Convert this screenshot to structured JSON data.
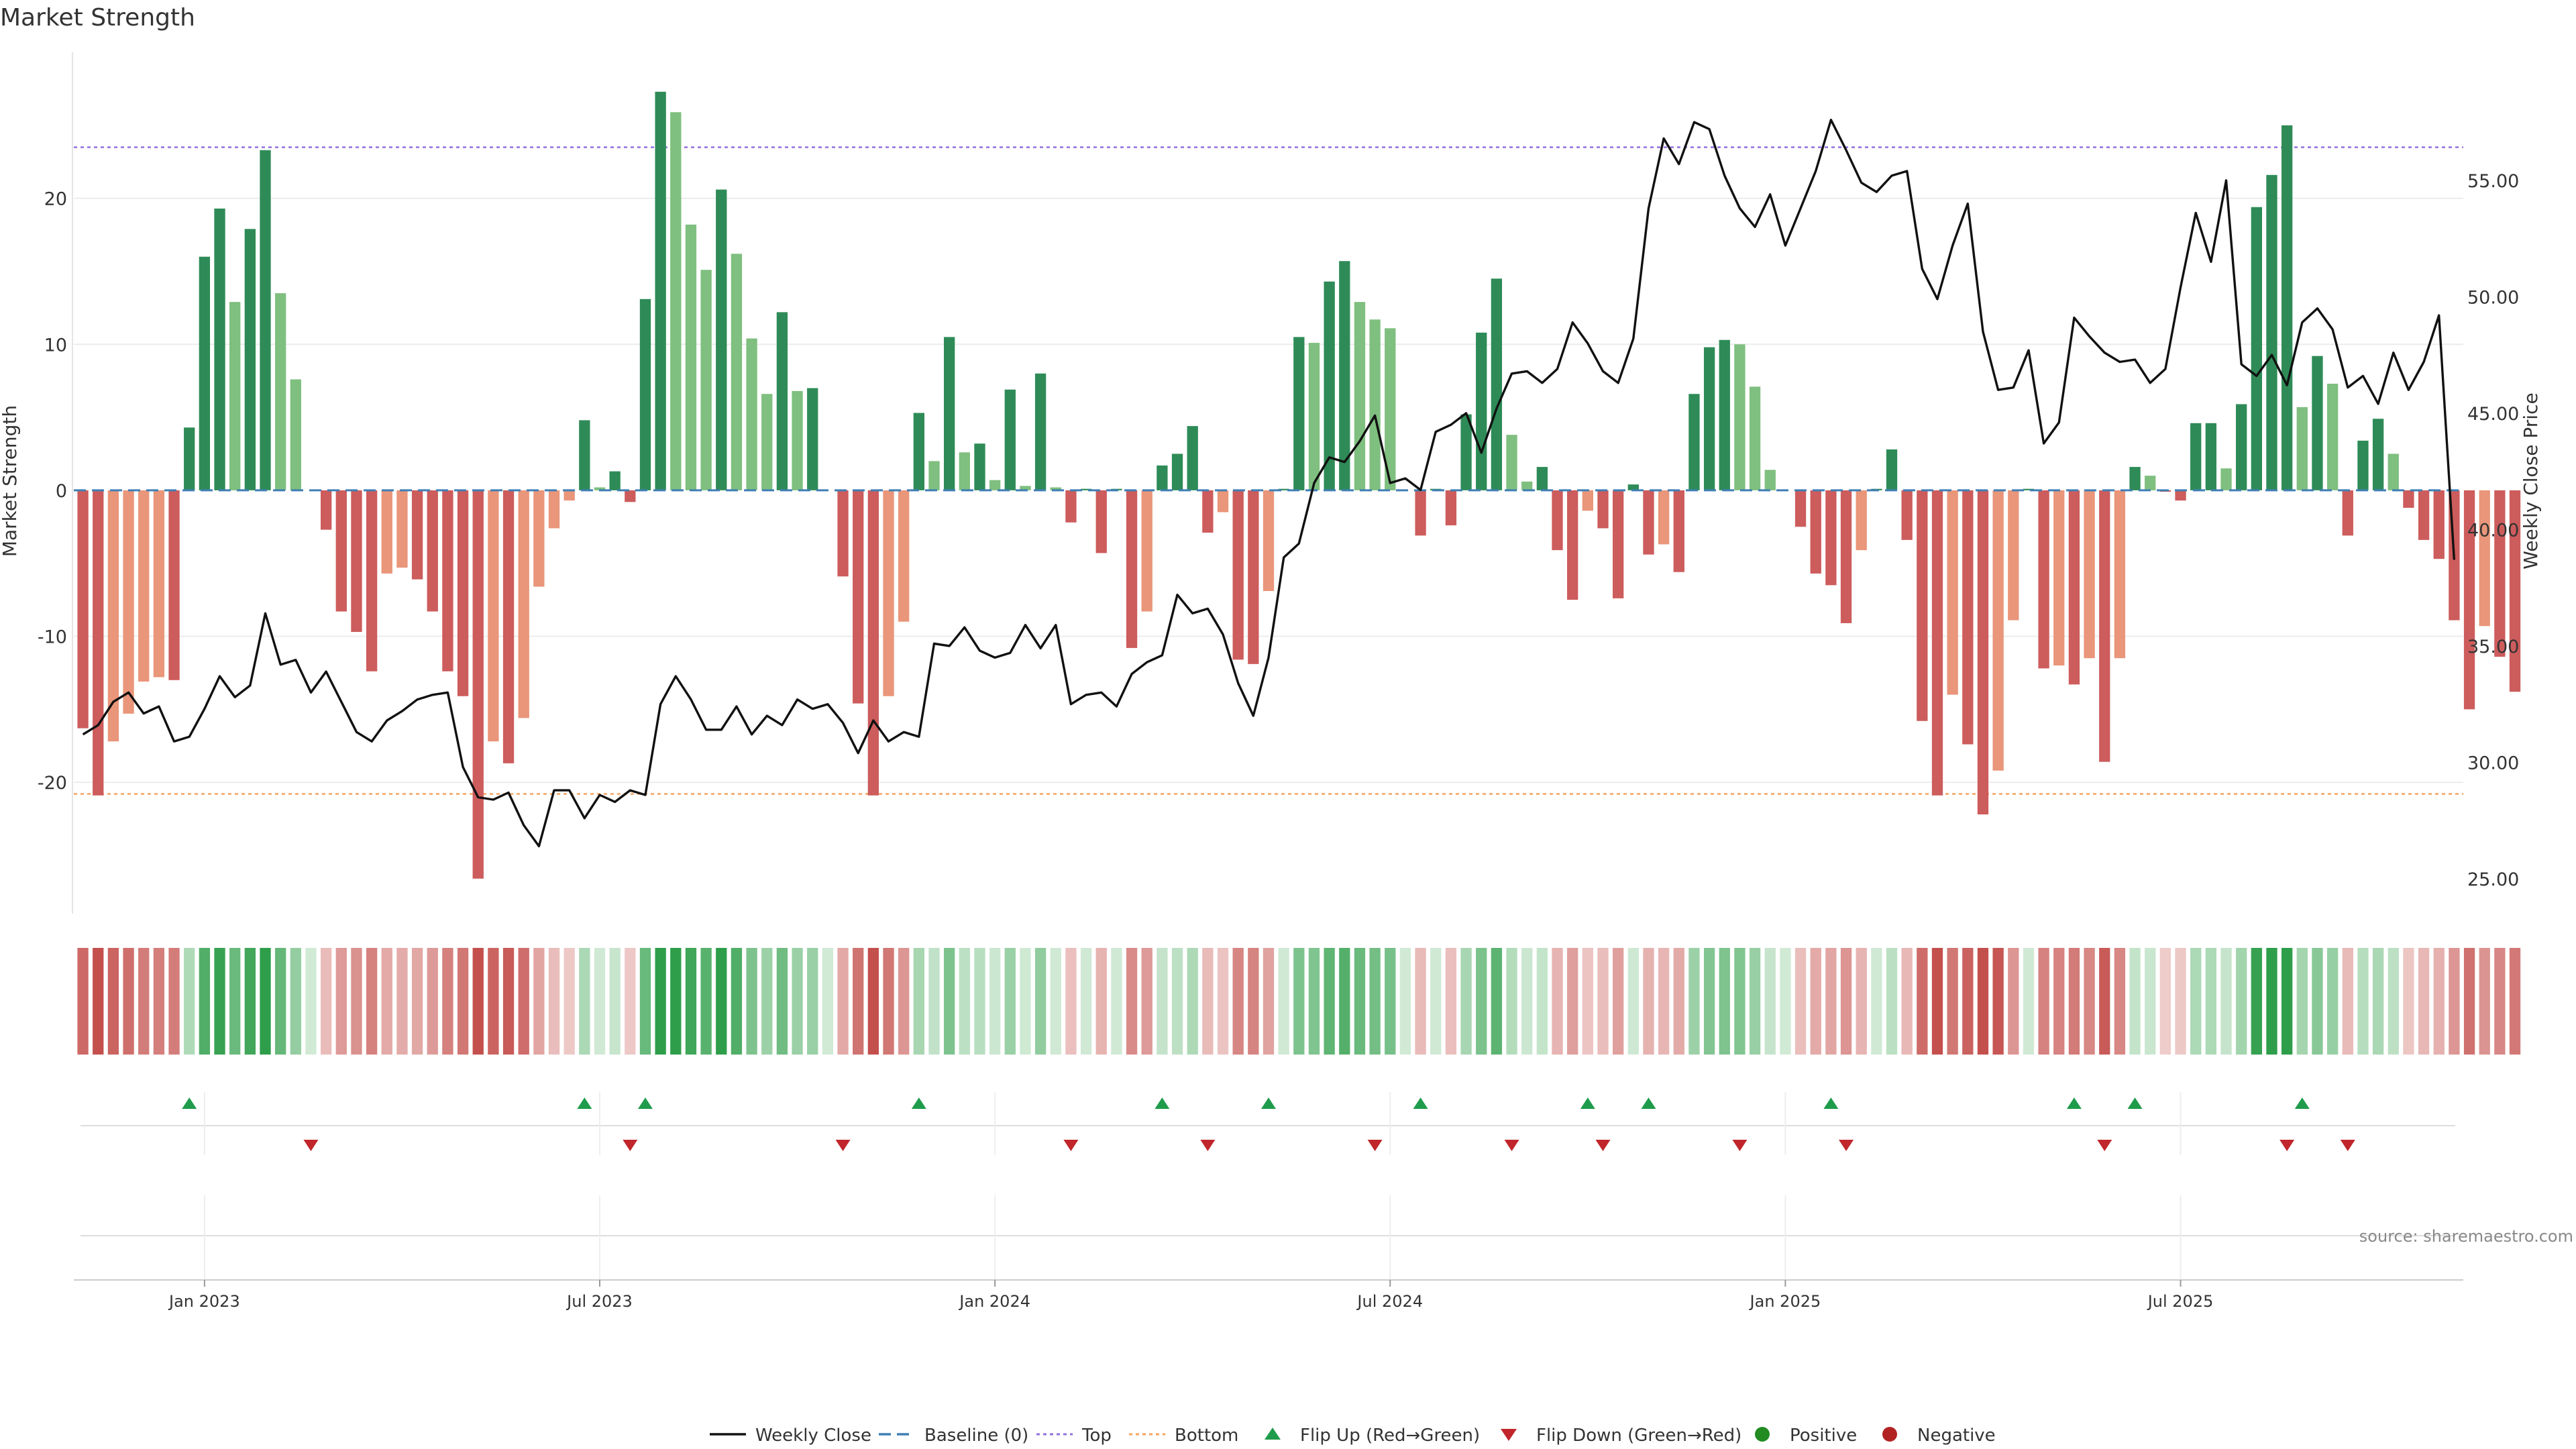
{
  "chart_data": {
    "type": "bar+line",
    "title": "Market Strength",
    "ylabel_left": "Market Strength",
    "ylabel_right": "Weekly Close Price",
    "source": "source: sharemaestro.com",
    "ylim_left": [
      -29,
      30
    ],
    "ylim_right": [
      23.5,
      60.5
    ],
    "yticks_left": [
      "20",
      "10",
      "0",
      "-10",
      "-20"
    ],
    "yticks_left_values": [
      20,
      10,
      0,
      -10,
      -20
    ],
    "yticks_right": [
      "55.00",
      "50.00",
      "45.00",
      "40.00",
      "35.00",
      "30.00",
      "25.00"
    ],
    "yticks_right_values": [
      55,
      50,
      45,
      40,
      35,
      30,
      25
    ],
    "top_line": 23.5,
    "bottom_line": -20.8,
    "x_ticks": [
      "Jan 2023",
      "Jul 2023",
      "Jan 2024",
      "Jul 2024",
      "Jan 2025",
      "Jul 2025"
    ],
    "x_tick_weeks": [
      8,
      34,
      60,
      86,
      112,
      138
    ],
    "x_domain_weeks": [
      -0.6,
      156.6
    ],
    "strength": [
      -16.3,
      -20.9,
      -17.2,
      -15.3,
      -13.1,
      -12.8,
      -13.0,
      4.3,
      16.0,
      19.3,
      12.9,
      17.9,
      23.3,
      13.5,
      7.6,
      0,
      -2.7,
      -8.3,
      -9.7,
      -12.4,
      -5.7,
      -5.3,
      -6.1,
      -8.3,
      -12.4,
      -14.1,
      -26.6,
      -17.2,
      -18.7,
      -15.6,
      -6.6,
      -2.6,
      -0.7,
      4.8,
      0.2,
      1.3,
      -0.8,
      13.1,
      27.3,
      25.9,
      18.2,
      15.1,
      20.6,
      16.2,
      10.4,
      6.6,
      12.2,
      6.8,
      7.0,
      0,
      -5.9,
      -14.6,
      -20.9,
      -14.1,
      -9.0,
      5.3,
      2.0,
      10.5,
      2.6,
      3.2,
      0.7,
      6.9,
      0.3,
      8.0,
      0.2,
      -2.2,
      0.1,
      -4.3,
      0.1,
      -10.8,
      -8.3,
      1.7,
      2.5,
      4.4,
      -2.9,
      -1.5,
      -11.6,
      -11.9,
      -6.9,
      0.1,
      10.5,
      10.1,
      14.3,
      15.7,
      12.9,
      11.7,
      11.1,
      0,
      -3.1,
      0.1,
      -2.4,
      5.2,
      10.8,
      14.5,
      3.8,
      0.6,
      1.6,
      -4.1,
      -7.5,
      -1.4,
      -2.6,
      -7.4,
      0.4,
      -4.4,
      -3.7,
      -5.6,
      6.6,
      9.8,
      10.3,
      10.0,
      7.1,
      1.4,
      0,
      -2.5,
      -5.7,
      -6.5,
      -9.1,
      -4.1,
      0.1,
      2.8,
      -3.4,
      -15.8,
      -20.9,
      -14.0,
      -17.4,
      -22.2,
      -19.2,
      -8.9,
      0.1,
      -12.2,
      -12.0,
      -13.3,
      -11.5,
      -18.6,
      -11.5,
      1.6,
      1.0,
      -0.1,
      -0.7,
      4.6,
      4.6,
      1.5,
      5.9,
      19.4,
      21.6,
      25.0,
      5.7,
      9.2,
      7.3,
      -3.1,
      3.4,
      4.9,
      2.5,
      -1.2,
      -3.4,
      -4.7,
      -8.9,
      -15.0,
      -9.3,
      -11.4,
      -13.8
    ],
    "close": [
      31.2,
      31.6,
      32.6,
      33.0,
      32.1,
      32.4,
      30.9,
      31.1,
      32.3,
      33.7,
      32.8,
      33.3,
      36.4,
      34.2,
      34.4,
      33.0,
      33.9,
      32.6,
      31.3,
      30.9,
      31.8,
      32.2,
      32.7,
      32.9,
      33.0,
      29.8,
      28.5,
      28.4,
      28.7,
      27.3,
      26.4,
      28.8,
      28.8,
      27.6,
      28.6,
      28.3,
      28.8,
      28.6,
      32.5,
      33.7,
      32.7,
      31.4,
      31.4,
      32.4,
      31.2,
      32.0,
      31.6,
      32.7,
      32.3,
      32.5,
      31.7,
      30.4,
      31.8,
      30.9,
      31.3,
      31.1,
      35.1,
      35.0,
      35.8,
      34.8,
      34.5,
      34.7,
      35.9,
      34.9,
      35.9,
      32.5,
      32.9,
      33.0,
      32.4,
      33.8,
      34.3,
      34.6,
      37.2,
      36.4,
      36.6,
      35.5,
      33.4,
      32.0,
      34.5,
      38.8,
      39.4,
      42.0,
      43.1,
      42.9,
      43.8,
      44.9,
      42.0,
      42.2,
      41.7,
      44.2,
      44.5,
      45.0,
      43.3,
      45.2,
      46.7,
      46.8,
      46.3,
      46.9,
      48.9,
      48.0,
      46.8,
      46.3,
      48.2,
      53.8,
      56.8,
      55.7,
      57.5,
      57.2,
      55.2,
      53.8,
      53.0,
      54.4,
      52.2,
      53.8,
      55.4,
      57.6,
      56.3,
      54.9,
      54.5,
      55.2,
      55.4,
      51.2,
      49.9,
      52.2,
      54.0,
      48.5,
      46.0,
      46.1,
      47.7,
      43.7,
      44.6,
      49.1,
      48.3,
      47.6,
      47.2,
      47.3,
      46.3,
      46.9,
      50.4,
      53.6,
      51.5,
      55.0,
      47.1,
      46.6,
      47.5,
      46.2,
      48.9,
      49.5,
      48.6,
      46.1,
      46.6,
      45.4,
      47.6,
      46.0,
      47.2,
      49.2,
      38.7
    ],
    "flip_up_weeks": [
      7,
      33,
      37,
      55,
      71,
      78,
      88,
      99,
      103,
      115,
      131,
      135,
      146
    ],
    "flip_down_weeks": [
      15,
      36,
      50,
      65,
      74,
      85,
      94,
      100,
      109,
      116,
      133,
      145,
      149
    ],
    "colors": {
      "strong_positive": "#2e8b57",
      "weak_positive": "#7fbf7f",
      "strong_negative": "#cd5c5c",
      "weak_negative": "#e9967a",
      "line": "#111111",
      "top_line": "#9370db",
      "bottom_line": "#f4a460",
      "flip_up": "#1f9c4b",
      "flip_down": "#c0262b",
      "positive_dot": "#228b22",
      "negative_dot": "#b22222"
    },
    "legend": [
      "Weekly Close",
      "Baseline (0)",
      "Top",
      "Bottom",
      "Flip Up (Red→Green)",
      "Flip Down (Green→Red)",
      "Positive",
      "Negative"
    ]
  }
}
